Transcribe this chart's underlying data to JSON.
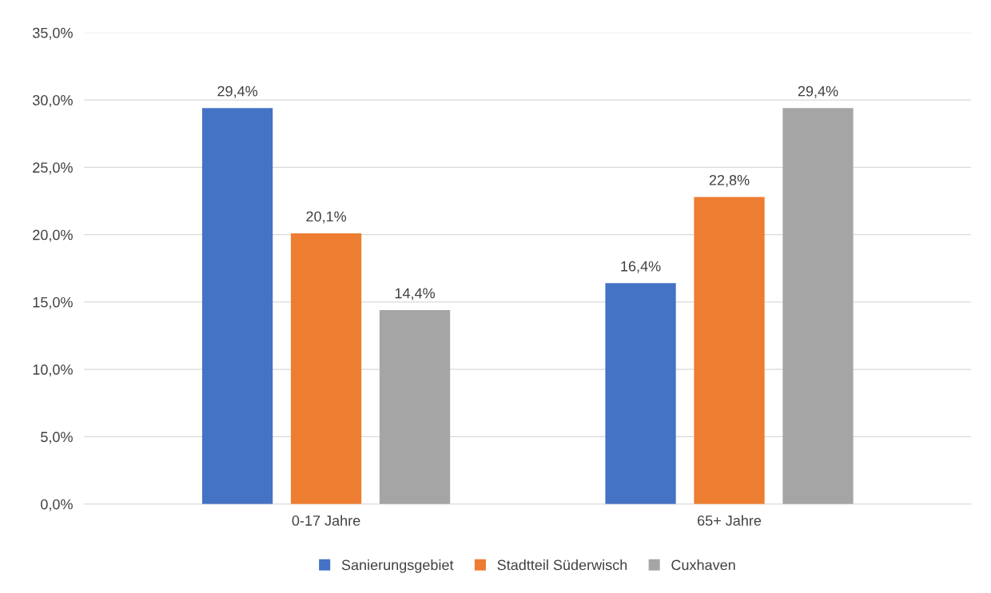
{
  "chart_data": {
    "type": "bar",
    "categories": [
      "0-17 Jahre",
      "65+ Jahre"
    ],
    "series": [
      {
        "name": "Sanierungsgebiet",
        "color": "#4472c4",
        "values": [
          29.4,
          16.4
        ],
        "value_labels": [
          "29,4%",
          "16,4%"
        ]
      },
      {
        "name": "Stadtteil Süderwisch",
        "color": "#ed7d31",
        "values": [
          20.1,
          22.8
        ],
        "value_labels": [
          "20,1%",
          "22,8%"
        ]
      },
      {
        "name": "Cuxhaven",
        "color": "#a5a5a5",
        "values": [
          14.4,
          29.4
        ],
        "value_labels": [
          "14,4%",
          "29,4%"
        ]
      }
    ],
    "ylim": [
      0,
      35
    ],
    "yticks": [
      {
        "value": 0,
        "label": "0,0%"
      },
      {
        "value": 5,
        "label": "5,0%"
      },
      {
        "value": 10,
        "label": "10,0%"
      },
      {
        "value": 15,
        "label": "15,0%"
      },
      {
        "value": 20,
        "label": "20,0%"
      },
      {
        "value": 25,
        "label": "25,0%"
      },
      {
        "value": 30,
        "label": "30,0%"
      },
      {
        "value": 35,
        "label": "35,0%"
      }
    ],
    "grid": "y",
    "legend": "bottom"
  }
}
